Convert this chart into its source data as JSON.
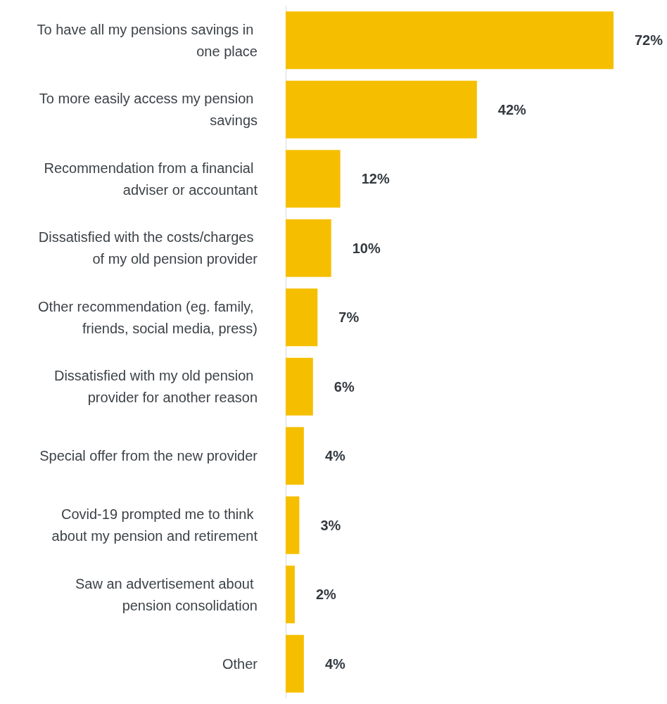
{
  "chart_data": {
    "type": "bar",
    "orientation": "horizontal",
    "categories": [
      "To have all my pensions savings in one place",
      "To more easily access my pension savings",
      "Recommendation from a financial adviser or accountant",
      "Dissatisfied with the costs/charges of my old pension provider",
      "Other recommendation (eg. family, friends, social media, press)",
      "Dissatisfied with my old pension provider for another reason",
      "Special offer from the new provider",
      "Covid-19 prompted me to think about my pension and retirement",
      "Saw an advertisement about pension consolidation",
      "Other"
    ],
    "values": [
      72,
      42,
      12,
      10,
      7,
      6,
      4,
      3,
      2,
      4
    ],
    "value_labels": [
      "72%",
      "42%",
      "12%",
      "10%",
      "7%",
      "6%",
      "4%",
      "3%",
      "2%",
      "4%"
    ],
    "color": "#f5bf00",
    "grid": false
  }
}
